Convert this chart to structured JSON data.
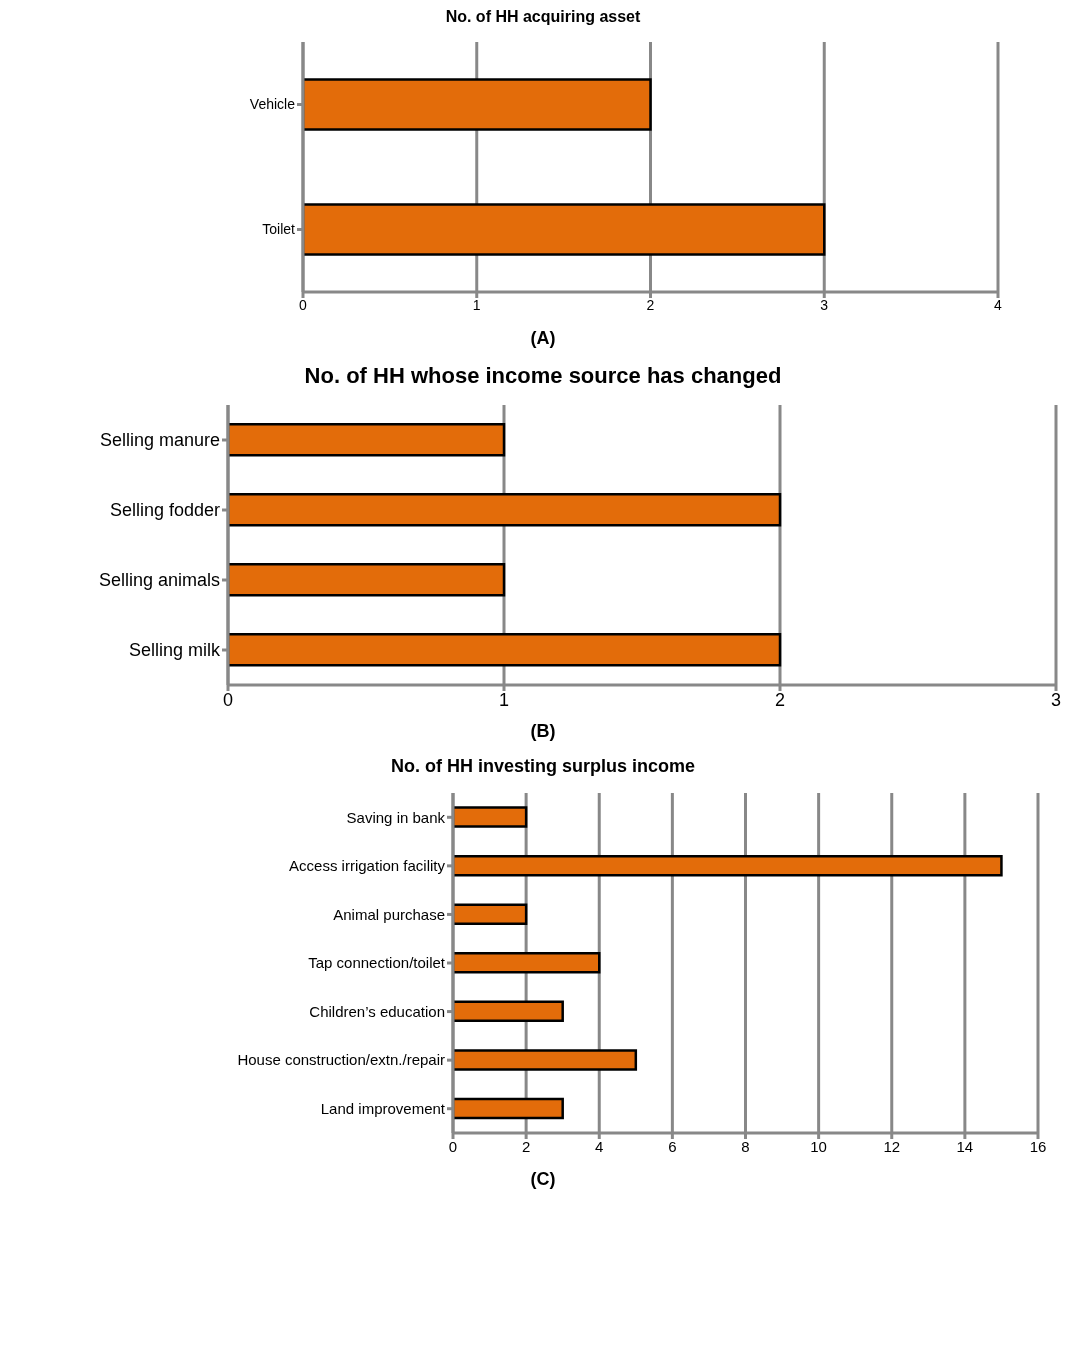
{
  "chart_data": [
    {
      "type": "bar",
      "orientation": "horizontal",
      "title": "No. of HH acquiring asset",
      "categories": [
        "Vehicle",
        "Toilet"
      ],
      "values": [
        2,
        3
      ],
      "color": "#e36c0a",
      "xlim": [
        0,
        4
      ],
      "xticks": [
        0,
        1,
        2,
        3,
        4
      ],
      "grid": "x",
      "annotations": [
        "(A)"
      ]
    },
    {
      "type": "bar",
      "orientation": "horizontal",
      "title": "No. of HH whose income source has changed",
      "categories": [
        "Selling manure",
        "Selling fodder",
        "Selling animals",
        "Selling milk"
      ],
      "values": [
        1,
        2,
        1,
        2
      ],
      "color": "#e36c0a",
      "xlim": [
        0,
        3
      ],
      "xticks": [
        0,
        1,
        2,
        3
      ],
      "grid": "x",
      "annotations": [
        "(B)"
      ]
    },
    {
      "type": "bar",
      "orientation": "horizontal",
      "title": "No. of HH investing surplus income",
      "categories": [
        "Saving in bank",
        "Access irrigation facility",
        "Animal purchase",
        "Tap connection/toilet",
        "Children’s education",
        "House construction/extn./repair",
        "Land improvement"
      ],
      "values": [
        2,
        15,
        2,
        4,
        3,
        5,
        3
      ],
      "color": "#e36c0a",
      "xlim": [
        0,
        16
      ],
      "xticks": [
        0,
        2,
        4,
        6,
        8,
        10,
        12,
        14,
        16
      ],
      "grid": "x",
      "annotations": [
        "(C)"
      ]
    }
  ]
}
